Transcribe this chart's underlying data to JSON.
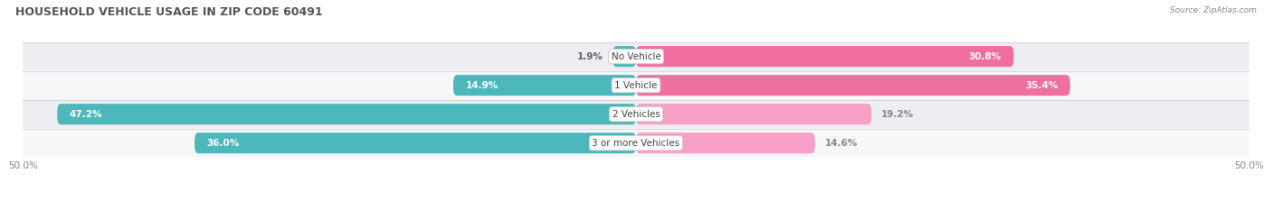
{
  "title": "HOUSEHOLD VEHICLE USAGE IN ZIP CODE 60491",
  "source": "Source: ZipAtlas.com",
  "categories": [
    "No Vehicle",
    "1 Vehicle",
    "2 Vehicles",
    "3 or more Vehicles"
  ],
  "owner_values": [
    1.9,
    14.9,
    47.2,
    36.0
  ],
  "renter_values": [
    30.8,
    35.4,
    19.2,
    14.6
  ],
  "owner_color": "#4db8bc",
  "renter_color_dark": "#f06fa0",
  "renter_color_light": "#f5a0c4",
  "renter_threshold": 20.0,
  "bg_color_even": "#ededf2",
  "bg_color_odd": "#f7f7fa",
  "axis_max": 50.0,
  "bar_height": 0.72,
  "title_fontsize": 9,
  "label_fontsize": 7.5,
  "tick_fontsize": 7.5,
  "legend_fontsize": 7.5
}
